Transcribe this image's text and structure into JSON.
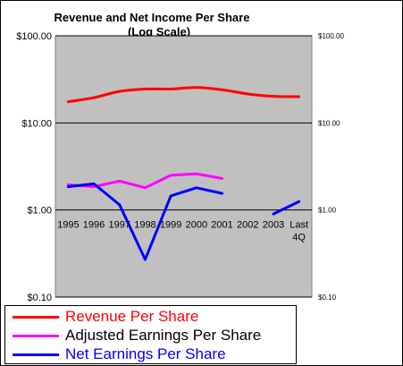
{
  "chart_data": {
    "type": "line",
    "title": "Revenue and Net Income Per Share",
    "subtitle": "(Log Scale)",
    "scale": "log",
    "ylim": [
      0.1,
      100
    ],
    "y_ticks": [
      "$100.00",
      "$10.00",
      "$1.00",
      "$0.10"
    ],
    "categories": [
      "1995",
      "1996",
      "1997",
      "1998",
      "1999",
      "2000",
      "2001",
      "2002",
      "2003",
      "Last 4Q"
    ],
    "grid": "horizontal major",
    "plot_background": "#c0c0c0",
    "legend_position": "bottom-left",
    "series": [
      {
        "name": "Revenue Per Share",
        "color": "#ff0000",
        "values": [
          17.5,
          19.5,
          23,
          24.5,
          24.5,
          25.5,
          24,
          21.5,
          20.2,
          20
        ]
      },
      {
        "name": "Adjusted Earnings Per Share",
        "color": "#ff00ff",
        "values": [
          1.95,
          1.85,
          2.15,
          1.8,
          2.5,
          2.6,
          2.3,
          null,
          null,
          null
        ]
      },
      {
        "name": "Net Earnings Per Share",
        "color": "#0000ff",
        "values": [
          1.85,
          2.0,
          1.15,
          0.27,
          1.45,
          1.8,
          1.55,
          null,
          0.9,
          1.25
        ]
      }
    ]
  }
}
